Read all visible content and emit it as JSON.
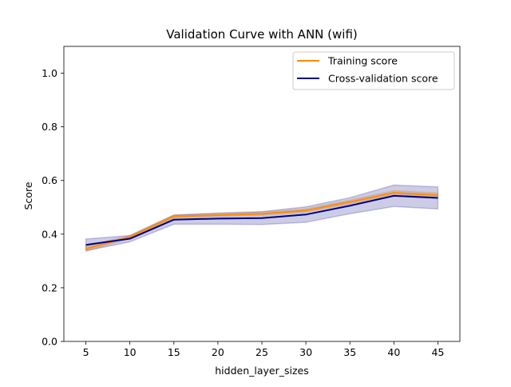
{
  "chart_data": {
    "type": "line",
    "title": "Validation Curve with ANN (wifi)",
    "xlabel": "hidden_layer_sizes",
    "ylabel": "Score",
    "x": [
      5,
      10,
      15,
      20,
      25,
      30,
      35,
      40,
      45
    ],
    "xlim": [
      2.5,
      47.5
    ],
    "ylim": [
      0.0,
      1.1
    ],
    "xticks": [
      "5",
      "10",
      "15",
      "20",
      "25",
      "30",
      "35",
      "40",
      "45"
    ],
    "yticks": [
      "0.0",
      "0.2",
      "0.4",
      "0.6",
      "0.8",
      "1.0"
    ],
    "grid": false,
    "legend_position": "upper right",
    "series": [
      {
        "name": "Training score",
        "color": "#ff8c00",
        "values": [
          0.345,
          0.39,
          0.466,
          0.471,
          0.476,
          0.488,
          0.52,
          0.554,
          0.545
        ],
        "band_lower": [
          0.335,
          0.385,
          0.46,
          0.466,
          0.47,
          0.482,
          0.513,
          0.546,
          0.537
        ],
        "band_upper": [
          0.355,
          0.395,
          0.472,
          0.476,
          0.482,
          0.494,
          0.527,
          0.562,
          0.553
        ]
      },
      {
        "name": "Cross-validation score",
        "color": "#000080",
        "values": [
          0.36,
          0.383,
          0.454,
          0.458,
          0.46,
          0.473,
          0.506,
          0.543,
          0.535
        ],
        "band_lower": [
          0.338,
          0.371,
          0.437,
          0.437,
          0.436,
          0.444,
          0.476,
          0.503,
          0.494
        ],
        "band_upper": [
          0.382,
          0.395,
          0.471,
          0.479,
          0.484,
          0.502,
          0.536,
          0.583,
          0.576
        ]
      }
    ]
  }
}
